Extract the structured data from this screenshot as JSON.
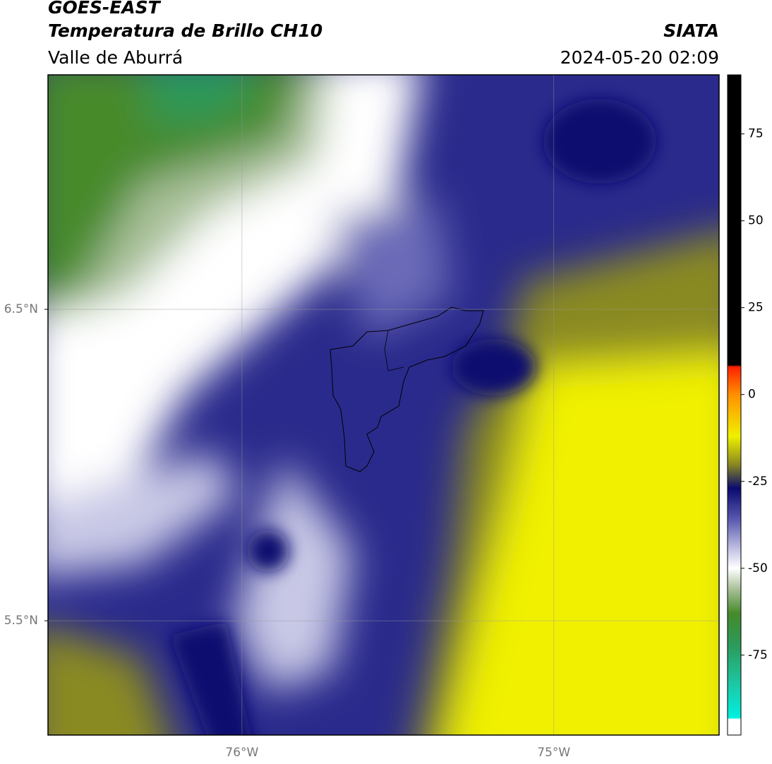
{
  "header": {
    "satellite": "GOES-EAST",
    "product": "Temperatura de Brillo CH10",
    "region": "Valle de Aburrá",
    "agency": "SIATA",
    "datetime": "2024-05-20 02:09"
  },
  "map": {
    "xlim": [
      -76.622,
      -74.47
    ],
    "ylim": [
      5.133,
      7.253
    ],
    "xticks": [
      {
        "value": -76,
        "label": "76°W"
      },
      {
        "value": -75,
        "label": "75°W"
      }
    ],
    "yticks": [
      {
        "value": 6.5,
        "label": "6.5°N"
      },
      {
        "value": 5.5,
        "label": "5.5°N"
      }
    ],
    "grid": true
  },
  "colorbar": {
    "lim": [
      -98,
      92
    ],
    "ticks": [
      75,
      50,
      25,
      0,
      -25,
      -50,
      -75
    ],
    "stops": [
      {
        "value": 92,
        "color": "#000000"
      },
      {
        "value": 8.5,
        "color": "#000000"
      },
      {
        "value": 8,
        "color": "#ff2000"
      },
      {
        "value": 0,
        "color": "#ff9000"
      },
      {
        "value": -12,
        "color": "#f0f000"
      },
      {
        "value": -20,
        "color": "#8a8a20"
      },
      {
        "value": -27,
        "color": "#0a0a70"
      },
      {
        "value": -36,
        "color": "#5a5ab0"
      },
      {
        "value": -45,
        "color": "#c8c8e6"
      },
      {
        "value": -50,
        "color": "#ffffff"
      },
      {
        "value": -56,
        "color": "#a8c098"
      },
      {
        "value": -63,
        "color": "#468a2a"
      },
      {
        "value": -72,
        "color": "#2c9a5a"
      },
      {
        "value": -84,
        "color": "#1ccaa8"
      },
      {
        "value": -93,
        "color": "#00f0e0"
      },
      {
        "value": -93.5,
        "color": "#ffffff"
      },
      {
        "value": -98,
        "color": "#ffffff"
      }
    ]
  }
}
